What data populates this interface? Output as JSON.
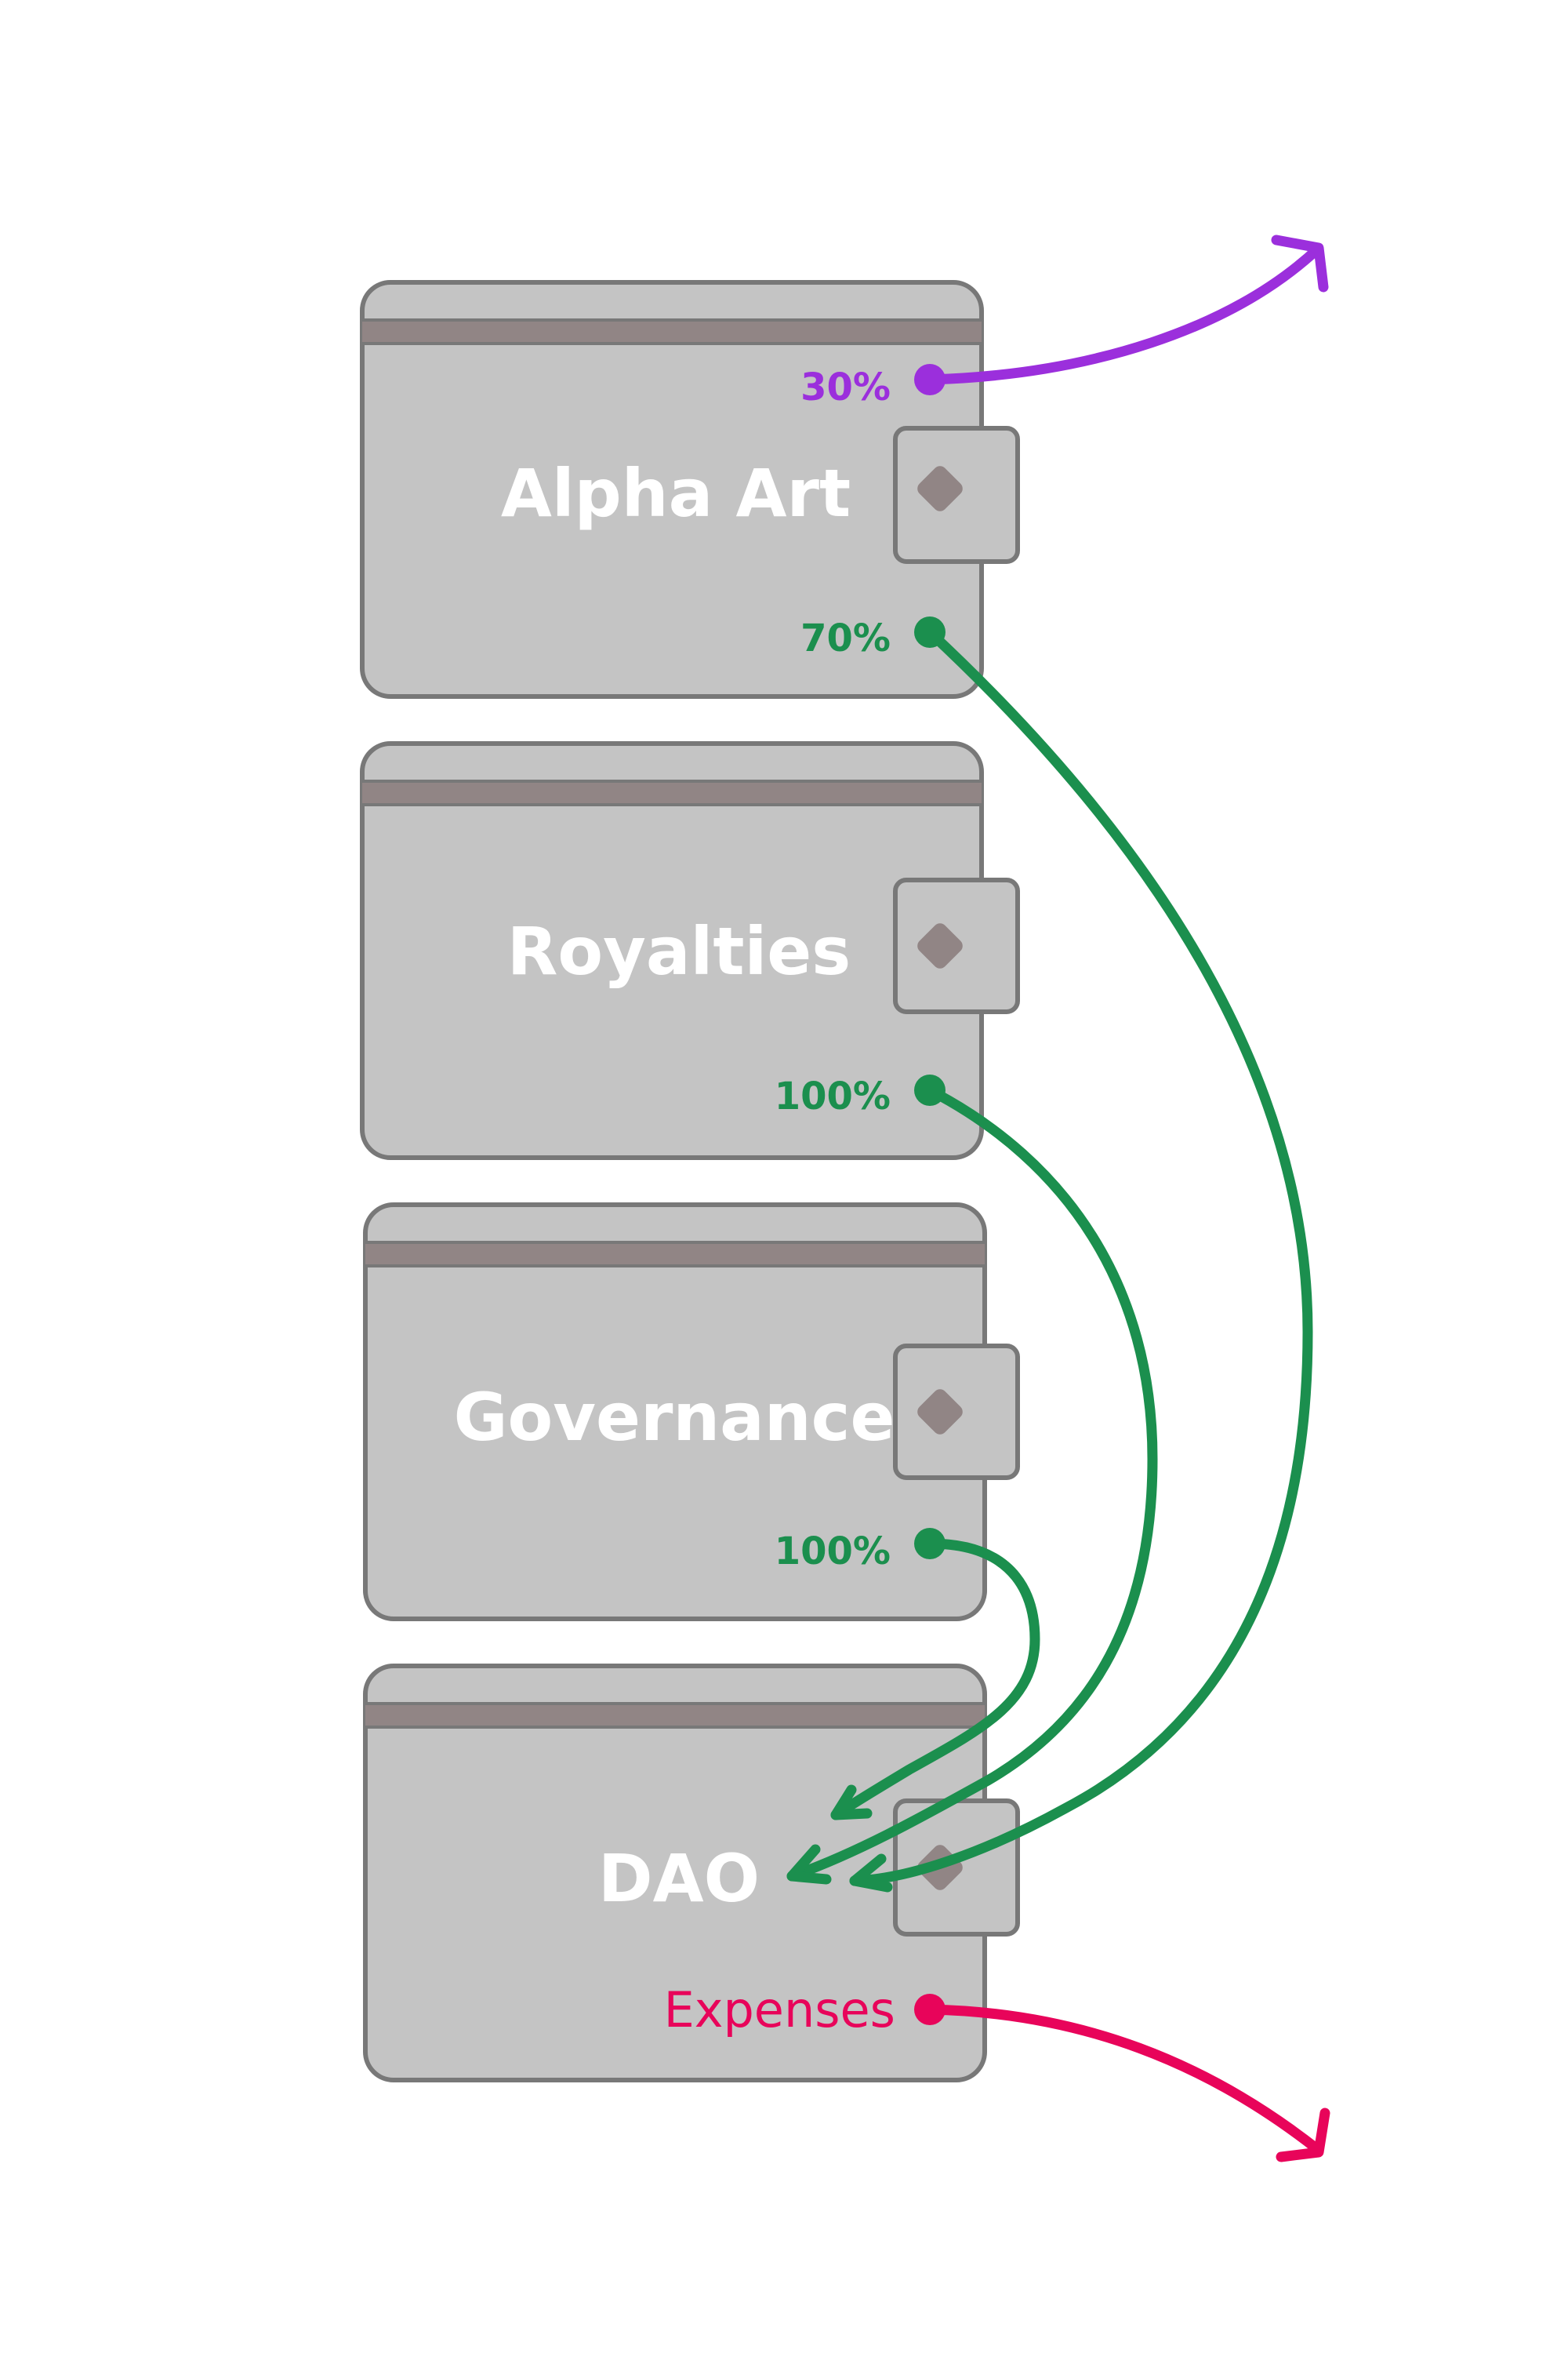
{
  "colors": {
    "wallet_fill": "#c4c4c4",
    "wallet_stroke": "#787878",
    "wallet_stripe": "#918585",
    "clasp_fill": "#c4c4c4",
    "clasp_diamond": "#918585",
    "title_text": "#ffffff",
    "flow_purple": "#9b2fdc",
    "flow_green": "#1b8f4e",
    "flow_pink": "#e8045a"
  },
  "wallets": [
    {
      "name": "Alpha Art"
    },
    {
      "name": "Royalties"
    },
    {
      "name": "Governance"
    },
    {
      "name": "DAO"
    }
  ],
  "flows": [
    {
      "from": "Alpha Art",
      "to": "external",
      "label": "30%",
      "color": "purple"
    },
    {
      "from": "Alpha Art",
      "to": "DAO",
      "label": "70%",
      "color": "green"
    },
    {
      "from": "Royalties",
      "to": "DAO",
      "label": "100%",
      "color": "green"
    },
    {
      "from": "Governance",
      "to": "DAO",
      "label": "100%",
      "color": "green"
    },
    {
      "from": "DAO",
      "to": "external",
      "label": "Expenses",
      "color": "pink"
    }
  ]
}
